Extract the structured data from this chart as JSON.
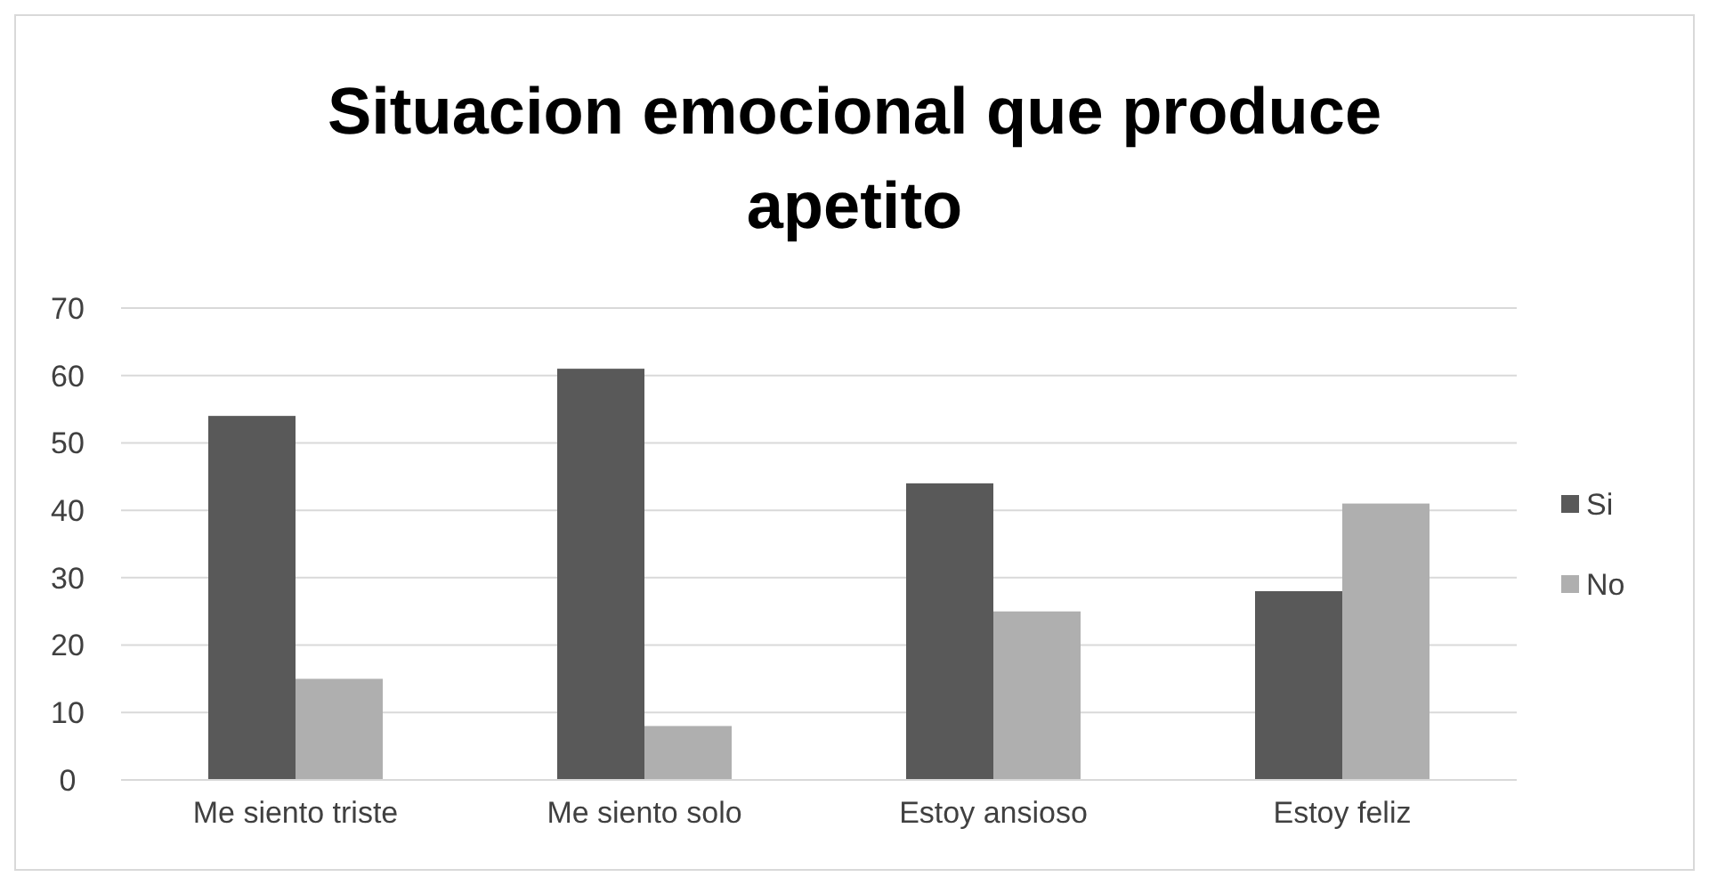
{
  "chart_data": {
    "type": "bar",
    "title": "Situacion emocional que produce apetito",
    "categories": [
      "Me siento triste",
      "Me siento solo",
      "Estoy ansioso",
      "Estoy feliz"
    ],
    "series": [
      {
        "name": "Si",
        "color": "#595959",
        "values": [
          54,
          61,
          44,
          28
        ]
      },
      {
        "name": "No",
        "color": "#afafaf",
        "values": [
          15,
          8,
          25,
          41
        ]
      }
    ],
    "ylim": [
      0,
      70
    ],
    "yticks": [
      0,
      10,
      20,
      30,
      40,
      50,
      60,
      70
    ],
    "grid": "y",
    "legend": "right"
  }
}
